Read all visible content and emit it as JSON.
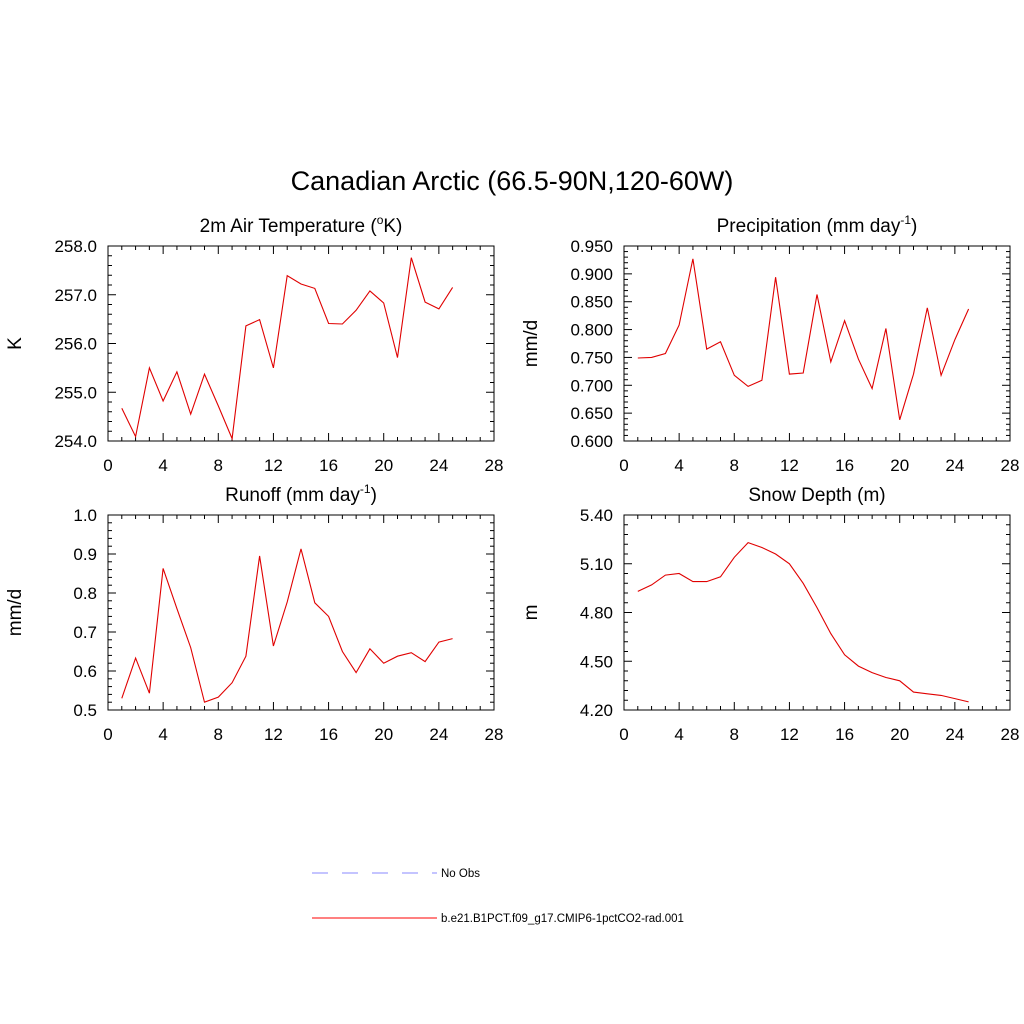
{
  "figure_title": "Canadian Arctic (66.5-90N,120-60W)",
  "legend": {
    "items": [
      {
        "label": "No Obs",
        "style": "dashed",
        "color": "#a0a0ff"
      },
      {
        "label": "b.e21.B1PCT.f09_g17.CMIP6-1pctCO2-rad.001",
        "style": "solid",
        "color": "#ff0000"
      }
    ]
  },
  "line_color": "#e00000",
  "chart_data": [
    {
      "type": "line",
      "title": "2m Air Temperature (",
      "title_sup": "o",
      "title_tail": "K)",
      "ylabel": "K",
      "xlim": [
        0,
        28
      ],
      "ylim": [
        254.0,
        258.0
      ],
      "xticks": [
        "0",
        "4",
        "8",
        "12",
        "16",
        "20",
        "24",
        "28"
      ],
      "yticks": [
        "254.0",
        "255.0",
        "256.0",
        "257.0",
        "258.0"
      ],
      "x": [
        1,
        2,
        3,
        4,
        5,
        6,
        7,
        8,
        9,
        10,
        11,
        12,
        13,
        14,
        15,
        16,
        17,
        18,
        19,
        20,
        21,
        22,
        23,
        24,
        25
      ],
      "values": [
        254.67,
        254.09,
        255.5,
        254.82,
        255.42,
        254.55,
        255.37,
        254.72,
        254.05,
        256.36,
        256.49,
        255.5,
        257.39,
        257.22,
        257.13,
        256.41,
        256.4,
        256.68,
        257.08,
        256.83,
        255.71,
        257.76,
        256.85,
        256.71,
        257.15
      ]
    },
    {
      "type": "line",
      "title": "Precipitation (mm day",
      "title_sup": "-1",
      "title_tail": ")",
      "ylabel": "mm/d",
      "xlim": [
        0,
        28
      ],
      "ylim": [
        0.6,
        0.95
      ],
      "xticks": [
        "0",
        "4",
        "8",
        "12",
        "16",
        "20",
        "24",
        "28"
      ],
      "yticks": [
        "0.600",
        "0.650",
        "0.700",
        "0.750",
        "0.800",
        "0.850",
        "0.900",
        "0.950"
      ],
      "x": [
        1,
        2,
        3,
        4,
        5,
        6,
        7,
        8,
        9,
        10,
        11,
        12,
        13,
        14,
        15,
        16,
        17,
        18,
        19,
        20,
        21,
        22,
        23,
        24,
        25
      ],
      "values": [
        0.749,
        0.75,
        0.757,
        0.808,
        0.927,
        0.765,
        0.778,
        0.718,
        0.698,
        0.709,
        0.894,
        0.72,
        0.722,
        0.863,
        0.742,
        0.816,
        0.747,
        0.694,
        0.802,
        0.638,
        0.72,
        0.839,
        0.718,
        0.782,
        0.837
      ]
    },
    {
      "type": "line",
      "title": "Runoff (mm day",
      "title_sup": "-1",
      "title_tail": ")",
      "ylabel": "mm/d",
      "xlim": [
        0,
        28
      ],
      "ylim": [
        0.5,
        1.0
      ],
      "xticks": [
        "0",
        "4",
        "8",
        "12",
        "16",
        "20",
        "24",
        "28"
      ],
      "yticks": [
        "0.5",
        "0.6",
        "0.7",
        "0.8",
        "0.9",
        "1.0"
      ],
      "x": [
        1,
        2,
        3,
        4,
        5,
        6,
        7,
        8,
        9,
        10,
        11,
        12,
        13,
        14,
        15,
        16,
        17,
        18,
        19,
        20,
        21,
        22,
        23,
        24,
        25
      ],
      "values": [
        0.53,
        0.633,
        0.543,
        0.863,
        0.76,
        0.66,
        0.52,
        0.533,
        0.57,
        0.638,
        0.895,
        0.664,
        0.777,
        0.913,
        0.775,
        0.74,
        0.65,
        0.596,
        0.657,
        0.62,
        0.638,
        0.647,
        0.624,
        0.674,
        0.683
      ]
    },
    {
      "type": "line",
      "title": "Snow Depth (m)",
      "title_sup": "",
      "title_tail": "",
      "ylabel": "m",
      "xlim": [
        0,
        28
      ],
      "ylim": [
        4.2,
        5.4
      ],
      "xticks": [
        "0",
        "4",
        "8",
        "12",
        "16",
        "20",
        "24",
        "28"
      ],
      "yticks": [
        "4.20",
        "4.50",
        "4.80",
        "5.10",
        "5.40"
      ],
      "x": [
        1,
        2,
        3,
        4,
        5,
        6,
        7,
        8,
        9,
        10,
        11,
        12,
        13,
        14,
        15,
        16,
        17,
        18,
        19,
        20,
        21,
        22,
        23,
        24,
        25
      ],
      "values": [
        4.93,
        4.97,
        5.03,
        5.04,
        4.99,
        4.99,
        5.02,
        5.14,
        5.23,
        5.2,
        5.16,
        5.1,
        4.98,
        4.83,
        4.67,
        4.54,
        4.47,
        4.43,
        4.4,
        4.38,
        4.31,
        4.3,
        4.29,
        4.27,
        4.25
      ]
    }
  ]
}
